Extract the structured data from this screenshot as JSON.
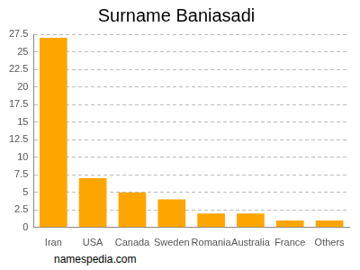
{
  "chart_data": {
    "type": "bar",
    "title": "Surname Baniasadi",
    "categories": [
      "Iran",
      "USA",
      "Canada",
      "Sweden",
      "Romania",
      "Australia",
      "France",
      "Others"
    ],
    "values": [
      27,
      7,
      5,
      4,
      2,
      2,
      1,
      1
    ],
    "color": "#ffa500",
    "ylim": [
      0,
      27.5
    ],
    "yticks": [
      0,
      2.5,
      5,
      7.5,
      10,
      12.5,
      15,
      17.5,
      20,
      22.5,
      25,
      27.5
    ],
    "grid": true,
    "annotation": "namespedia.com"
  }
}
